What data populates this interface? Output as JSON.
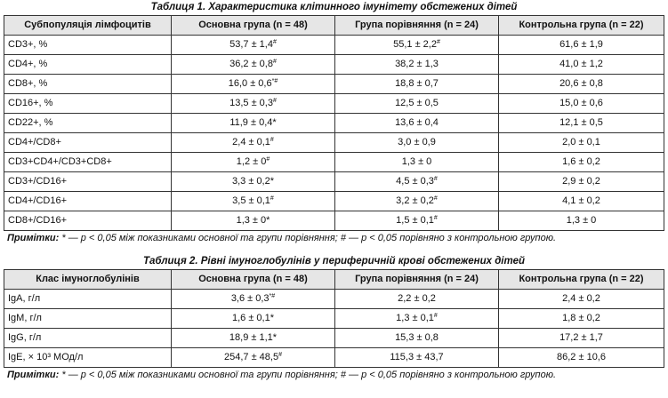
{
  "table1": {
    "title": "Таблиця 1. Характеристика клітинного імунітету обстежених дітей",
    "header": [
      "Субпопуляція лімфоцитів",
      "Основна група (n = 48)",
      "Група порівняння (n = 24)",
      "Контрольна група (n = 22)"
    ],
    "rows": [
      [
        "CD3+, %",
        {
          "text": "53,7 ± 1,4",
          "sup": "#"
        },
        {
          "text": "55,1 ± 2,2",
          "sup": "#"
        },
        "61,6 ± 1,9"
      ],
      [
        "CD4+, %",
        {
          "text": "36,2 ± 0,8",
          "sup": "#"
        },
        "38,2 ± 1,3",
        "41,0 ± 1,2"
      ],
      [
        "CD8+, %",
        {
          "text": "16,0 ± 0,6",
          "sup": "*#"
        },
        "18,8 ± 0,7",
        "20,6 ± 0,8"
      ],
      [
        "CD16+, %",
        {
          "text": "13,5 ± 0,3",
          "sup": "#"
        },
        "12,5 ± 0,5",
        "15,0 ± 0,6"
      ],
      [
        "CD22+, %",
        "11,9 ± 0,4*",
        "13,6 ± 0,4",
        "12,1 ± 0,5"
      ],
      [
        "CD4+/CD8+",
        {
          "text": "2,4 ± 0,1",
          "sup": "#"
        },
        "3,0 ± 0,9",
        "2,0 ± 0,1"
      ],
      [
        "CD3+CD4+/CD3+CD8+",
        {
          "text": "1,2 ± 0",
          "sup": "#"
        },
        "1,3 ± 0",
        "1,6 ± 0,2"
      ],
      [
        "CD3+/CD16+",
        "3,3 ± 0,2*",
        {
          "text": "4,5 ± 0,3",
          "sup": "#"
        },
        "2,9 ± 0,2"
      ],
      [
        "CD4+/CD16+",
        {
          "text": "3,5 ± 0,1",
          "sup": "#"
        },
        {
          "text": "3,2 ± 0,2",
          "sup": "#"
        },
        "4,1 ± 0,2"
      ],
      [
        "CD8+/CD16+",
        "1,3 ± 0*",
        {
          "text": "1,5 ± 0,1",
          "sup": "#"
        },
        "1,3 ± 0"
      ]
    ],
    "note_label": "Примітки:",
    "note": "* — p < 0,05 між показниками основної та групи порівняння; # — p < 0,05 порівняно з контрольною групою."
  },
  "table2": {
    "title": "Таблиця 2. Рівні імуноглобулінів у периферичній крові обстежених дітей",
    "header": [
      "Клас імуноглобулінів",
      "Основна група (n = 48)",
      "Група порівняння (n = 24)",
      "Контрольна група (n = 22)"
    ],
    "rows": [
      [
        "IgA, г/л",
        {
          "text": "3,6 ± 0,3",
          "sup": "*#"
        },
        "2,2 ± 0,2",
        "2,4 ± 0,2"
      ],
      [
        "IgM, г/л",
        "1,6 ± 0,1*",
        {
          "text": "1,3 ± 0,1",
          "sup": "#"
        },
        "1,8 ± 0,2"
      ],
      [
        "IgG, г/л",
        "18,9 ± 1,1*",
        "15,3 ± 0,8",
        "17,2 ± 1,7"
      ],
      [
        "IgE, × 10³ МОд/л",
        {
          "text": "254,7 ± 48,5",
          "sup": "#"
        },
        "115,3 ± 43,7",
        "86,2 ± 10,6"
      ]
    ],
    "note_label": "Примітки:",
    "note": "* — p < 0,05 між показниками основної та групи порівняння; # — p < 0,05 порівняно з контрольною групою."
  }
}
